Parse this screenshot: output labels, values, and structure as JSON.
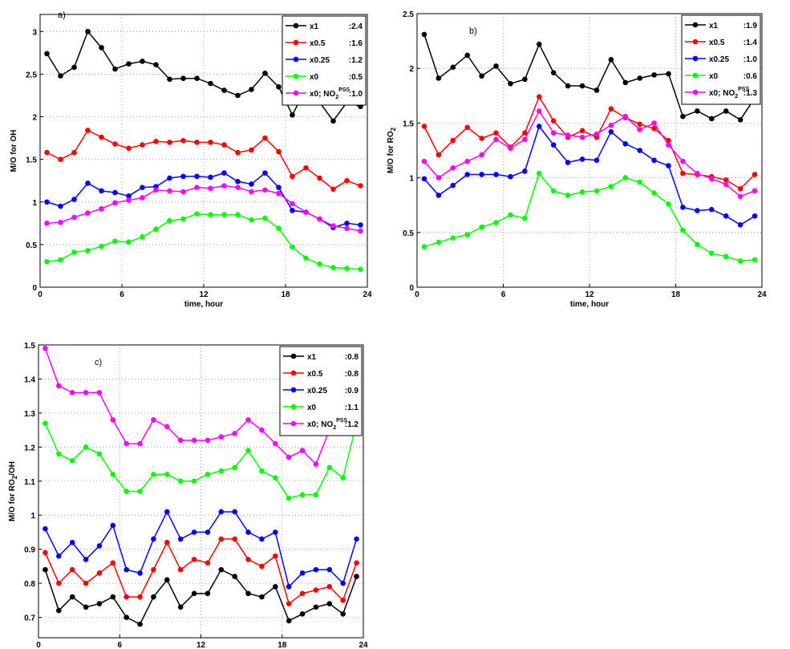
{
  "chart_data": [
    {
      "type": "line",
      "panel_label": "a)",
      "xlabel": "time, hour",
      "ylabel": "M/O for OH",
      "x": [
        0.5,
        1.5,
        2.5,
        3.5,
        4.5,
        5.5,
        6.5,
        7.5,
        8.5,
        9.5,
        10.5,
        11.5,
        12.5,
        13.5,
        14.5,
        15.5,
        16.5,
        17.5,
        18.5,
        19.5,
        20.5,
        21.5,
        22.5,
        23.5
      ],
      "xlim": [
        0,
        24
      ],
      "xticks": [
        0,
        6,
        12,
        18,
        24
      ],
      "ylim": [
        0,
        3.2
      ],
      "yticks": [
        0,
        0.5,
        1,
        1.5,
        2,
        2.5,
        3
      ],
      "grid": true,
      "legend": "upper right",
      "series": [
        {
          "name": "x1",
          "legend_note": ":2.4",
          "color": "#000000",
          "values": [
            2.74,
            2.48,
            2.58,
            3.0,
            2.81,
            2.56,
            2.62,
            2.65,
            2.61,
            2.44,
            2.45,
            2.45,
            2.39,
            2.31,
            2.25,
            2.32,
            2.51,
            2.35,
            2.02,
            2.33,
            2.17,
            1.95,
            2.17,
            2.12
          ]
        },
        {
          "name": "x0.5",
          "legend_note": ":1.6",
          "color": "#ff0000",
          "values": [
            1.58,
            1.5,
            1.58,
            1.84,
            1.76,
            1.68,
            1.63,
            1.67,
            1.71,
            1.7,
            1.72,
            1.7,
            1.7,
            1.67,
            1.58,
            1.61,
            1.75,
            1.59,
            1.3,
            1.4,
            1.28,
            1.15,
            1.25,
            1.19
          ]
        },
        {
          "name": "x0.25",
          "legend_note": ":1.2",
          "color": "#0000ff",
          "values": [
            1.0,
            0.95,
            1.03,
            1.22,
            1.13,
            1.11,
            1.07,
            1.17,
            1.18,
            1.28,
            1.3,
            1.3,
            1.29,
            1.34,
            1.24,
            1.21,
            1.34,
            1.17,
            0.9,
            0.88,
            0.8,
            0.7,
            0.75,
            0.73
          ]
        },
        {
          "name": "x0",
          "legend_note": ":0.5",
          "color": "#00ff00",
          "values": [
            0.3,
            0.32,
            0.41,
            0.43,
            0.48,
            0.54,
            0.53,
            0.59,
            0.68,
            0.78,
            0.8,
            0.86,
            0.85,
            0.85,
            0.85,
            0.79,
            0.81,
            0.69,
            0.47,
            0.34,
            0.27,
            0.23,
            0.22,
            0.21
          ]
        },
        {
          "name": "x0; NO",
          "name_sub": "2",
          "name_sup": "PSS",
          "legend_note": ":1.0",
          "color": "#ff00ff",
          "values": [
            0.75,
            0.76,
            0.82,
            0.87,
            0.92,
            0.99,
            1.02,
            1.05,
            1.14,
            1.13,
            1.12,
            1.17,
            1.16,
            1.19,
            1.17,
            1.12,
            1.14,
            1.1,
            0.98,
            0.88,
            0.8,
            0.72,
            0.69,
            0.66
          ]
        }
      ]
    },
    {
      "type": "line",
      "panel_label": "b)",
      "xlabel": "time, hour",
      "ylabel": "M/O for RO",
      "ylabel_sub": "2",
      "x": [
        0.5,
        1.5,
        2.5,
        3.5,
        4.5,
        5.5,
        6.5,
        7.5,
        8.5,
        9.5,
        10.5,
        11.5,
        12.5,
        13.5,
        14.5,
        15.5,
        16.5,
        17.5,
        18.5,
        19.5,
        20.5,
        21.5,
        22.5,
        23.5
      ],
      "xlim": [
        0,
        24
      ],
      "xticks": [
        0,
        6,
        12,
        18,
        24
      ],
      "ylim": [
        0,
        2.5
      ],
      "yticks": [
        0,
        0.5,
        1,
        1.5,
        2,
        2.5
      ],
      "grid": true,
      "legend": "upper right",
      "series": [
        {
          "name": "x1",
          "legend_note": ":1.9",
          "color": "#000000",
          "values": [
            2.31,
            1.91,
            2.01,
            2.12,
            1.93,
            2.02,
            1.86,
            1.9,
            2.22,
            1.96,
            1.84,
            1.84,
            1.8,
            2.08,
            1.87,
            1.91,
            1.94,
            1.95,
            1.56,
            1.61,
            1.54,
            1.61,
            1.53,
            1.73
          ]
        },
        {
          "name": "x0.5",
          "legend_note": ":1.4",
          "color": "#ff0000",
          "values": [
            1.47,
            1.21,
            1.34,
            1.46,
            1.36,
            1.41,
            1.28,
            1.41,
            1.74,
            1.52,
            1.37,
            1.43,
            1.37,
            1.63,
            1.55,
            1.49,
            1.45,
            1.34,
            1.04,
            1.03,
            1.01,
            0.98,
            0.9,
            1.03
          ]
        },
        {
          "name": "x0.25",
          "legend_note": ":1.0",
          "color": "#0000ff",
          "values": [
            0.99,
            0.84,
            0.93,
            1.03,
            1.03,
            1.03,
            1.01,
            1.06,
            1.47,
            1.3,
            1.14,
            1.17,
            1.16,
            1.42,
            1.31,
            1.25,
            1.16,
            1.11,
            0.73,
            0.7,
            0.71,
            0.65,
            0.57,
            0.65
          ]
        },
        {
          "name": "x0",
          "legend_note": ":0.6",
          "color": "#00ff00",
          "values": [
            0.37,
            0.41,
            0.45,
            0.48,
            0.55,
            0.59,
            0.66,
            0.63,
            1.04,
            0.88,
            0.84,
            0.87,
            0.88,
            0.92,
            1.0,
            0.96,
            0.86,
            0.76,
            0.52,
            0.39,
            0.31,
            0.28,
            0.24,
            0.25
          ]
        },
        {
          "name": "x0; NO",
          "name_sub": "2",
          "name_sup": "PSS",
          "legend_note": ":1.3",
          "color": "#ff00ff",
          "values": [
            1.15,
            1.0,
            1.09,
            1.15,
            1.21,
            1.35,
            1.27,
            1.35,
            1.61,
            1.41,
            1.39,
            1.37,
            1.4,
            1.48,
            1.56,
            1.44,
            1.5,
            1.3,
            1.15,
            1.04,
            0.99,
            0.94,
            0.83,
            0.88
          ]
        }
      ]
    },
    {
      "type": "line",
      "panel_label": "c)",
      "xlabel": "time, hour",
      "ylabel": "M/O for RO",
      "ylabel_sub": "2",
      "ylabel_tail": "/OH",
      "x": [
        0.5,
        1.5,
        2.5,
        3.5,
        4.5,
        5.5,
        6.5,
        7.5,
        8.5,
        9.5,
        10.5,
        11.5,
        12.5,
        13.5,
        14.5,
        15.5,
        16.5,
        17.5,
        18.5,
        19.5,
        20.5,
        21.5,
        22.5,
        23.5
      ],
      "xlim": [
        0,
        24
      ],
      "xticks": [
        0,
        6,
        12,
        18,
        24
      ],
      "ylim": [
        0.64,
        1.5
      ],
      "yticks": [
        0.7,
        0.8,
        0.9,
        1,
        1.1,
        1.2,
        1.3,
        1.4,
        1.5
      ],
      "grid": true,
      "legend": "upper right",
      "series": [
        {
          "name": "x1",
          "legend_note": ":0.8",
          "color": "#000000",
          "values": [
            0.84,
            0.72,
            0.76,
            0.73,
            0.74,
            0.76,
            0.7,
            0.68,
            0.76,
            0.81,
            0.73,
            0.77,
            0.77,
            0.84,
            0.82,
            0.77,
            0.76,
            0.79,
            0.69,
            0.71,
            0.73,
            0.74,
            0.71,
            0.82
          ]
        },
        {
          "name": "x0.5",
          "legend_note": ":0.8",
          "color": "#ff0000",
          "values": [
            0.89,
            0.8,
            0.84,
            0.8,
            0.83,
            0.86,
            0.76,
            0.76,
            0.84,
            0.92,
            0.84,
            0.87,
            0.86,
            0.93,
            0.93,
            0.87,
            0.85,
            0.88,
            0.74,
            0.77,
            0.78,
            0.79,
            0.75,
            0.86
          ]
        },
        {
          "name": "x0.25",
          "legend_note": ":0.9",
          "color": "#0000ff",
          "values": [
            0.96,
            0.88,
            0.92,
            0.87,
            0.91,
            0.97,
            0.84,
            0.83,
            0.93,
            1.01,
            0.93,
            0.95,
            0.95,
            1.01,
            1.01,
            0.95,
            0.93,
            0.95,
            0.79,
            0.83,
            0.84,
            0.84,
            0.8,
            0.93
          ]
        },
        {
          "name": "x0",
          "legend_note": ":1.1",
          "color": "#00ff00",
          "values": [
            1.27,
            1.18,
            1.16,
            1.2,
            1.18,
            1.12,
            1.07,
            1.07,
            1.12,
            1.12,
            1.1,
            1.1,
            1.12,
            1.13,
            1.14,
            1.19,
            1.13,
            1.11,
            1.05,
            1.06,
            1.06,
            1.14,
            1.11,
            1.27
          ]
        },
        {
          "name": "x0; NO",
          "name_sub": "2",
          "name_sup": "PSS",
          "legend_note": ":1.2",
          "color": "#ff00ff",
          "values": [
            1.49,
            1.38,
            1.36,
            1.36,
            1.36,
            1.28,
            1.21,
            1.21,
            1.28,
            1.26,
            1.22,
            1.22,
            1.22,
            1.23,
            1.24,
            1.28,
            1.25,
            1.21,
            1.17,
            1.19,
            1.15,
            1.25,
            1.26,
            1.27
          ]
        }
      ]
    }
  ]
}
